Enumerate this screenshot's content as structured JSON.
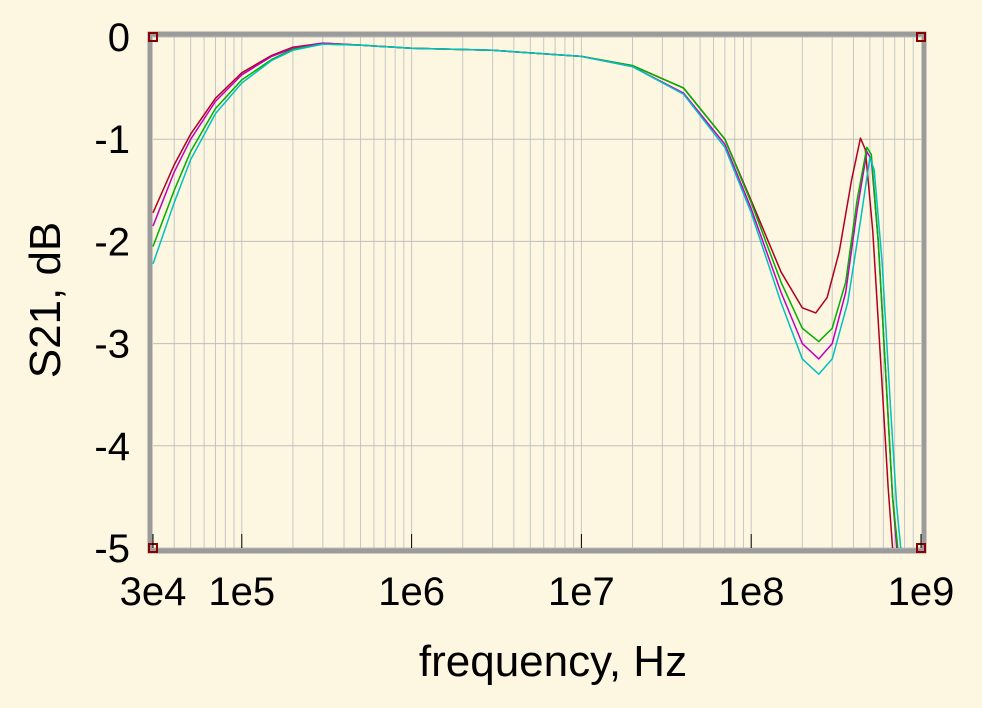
{
  "chart_data": {
    "type": "line",
    "xscale": "log",
    "xlabel": "frequency, Hz",
    "ylabel": "S21, dB",
    "xlim": [
      30000,
      1000000000
    ],
    "ylim": [
      -5,
      0
    ],
    "grid": true,
    "x_ticks": [
      {
        "value": 30000,
        "label": "3e4"
      },
      {
        "value": 100000,
        "label": "1e5"
      },
      {
        "value": 1000000,
        "label": "1e6"
      },
      {
        "value": 10000000,
        "label": "1e7"
      },
      {
        "value": 100000000,
        "label": "1e8"
      },
      {
        "value": 1000000000,
        "label": "1e9"
      }
    ],
    "y_ticks": [
      {
        "value": 0,
        "label": "0"
      },
      {
        "value": -1,
        "label": "-1"
      },
      {
        "value": -2,
        "label": "-2"
      },
      {
        "value": -3,
        "label": "-3"
      },
      {
        "value": -4,
        "label": "-4"
      },
      {
        "value": -5,
        "label": "-5"
      }
    ],
    "series": [
      {
        "color": "#b00020",
        "points": [
          [
            30000,
            -1.72
          ],
          [
            40000,
            -1.25
          ],
          [
            50000,
            -0.95
          ],
          [
            70000,
            -0.6
          ],
          [
            100000,
            -0.35
          ],
          [
            150000,
            -0.18
          ],
          [
            200000,
            -0.1
          ],
          [
            300000,
            -0.06
          ],
          [
            500000,
            -0.08
          ],
          [
            1000000,
            -0.11
          ],
          [
            3000000,
            -0.13
          ],
          [
            10000000,
            -0.19
          ],
          [
            20000000,
            -0.28
          ],
          [
            40000000,
            -0.5
          ],
          [
            70000000,
            -1.0
          ],
          [
            100000000,
            -1.6
          ],
          [
            150000000,
            -2.3
          ],
          [
            200000000,
            -2.65
          ],
          [
            240000000,
            -2.7
          ],
          [
            280000000,
            -2.55
          ],
          [
            330000000,
            -2.1
          ],
          [
            390000000,
            -1.4
          ],
          [
            440000000,
            -0.99
          ],
          [
            470000000,
            -1.1
          ],
          [
            520000000,
            -1.9
          ],
          [
            580000000,
            -3.2
          ],
          [
            640000000,
            -4.4
          ],
          [
            680000000,
            -5.0
          ]
        ]
      },
      {
        "color": "#c000c0",
        "points": [
          [
            30000,
            -1.85
          ],
          [
            40000,
            -1.32
          ],
          [
            50000,
            -1.0
          ],
          [
            70000,
            -0.63
          ],
          [
            100000,
            -0.37
          ],
          [
            150000,
            -0.19
          ],
          [
            200000,
            -0.11
          ],
          [
            300000,
            -0.06
          ],
          [
            500000,
            -0.08
          ],
          [
            1000000,
            -0.11
          ],
          [
            3000000,
            -0.13
          ],
          [
            10000000,
            -0.19
          ],
          [
            20000000,
            -0.29
          ],
          [
            40000000,
            -0.55
          ],
          [
            70000000,
            -1.05
          ],
          [
            100000000,
            -1.68
          ],
          [
            150000000,
            -2.5
          ],
          [
            200000000,
            -3.0
          ],
          [
            250000000,
            -3.15
          ],
          [
            300000000,
            -3.0
          ],
          [
            360000000,
            -2.5
          ],
          [
            420000000,
            -1.7
          ],
          [
            480000000,
            -1.12
          ],
          [
            510000000,
            -1.2
          ],
          [
            560000000,
            -2.0
          ],
          [
            620000000,
            -3.3
          ],
          [
            680000000,
            -4.5
          ],
          [
            720000000,
            -5.0
          ]
        ]
      },
      {
        "color": "#00b000",
        "points": [
          [
            30000,
            -2.05
          ],
          [
            40000,
            -1.5
          ],
          [
            50000,
            -1.12
          ],
          [
            70000,
            -0.7
          ],
          [
            100000,
            -0.42
          ],
          [
            150000,
            -0.22
          ],
          [
            200000,
            -0.12
          ],
          [
            300000,
            -0.07
          ],
          [
            500000,
            -0.08
          ],
          [
            1000000,
            -0.11
          ],
          [
            3000000,
            -0.13
          ],
          [
            10000000,
            -0.19
          ],
          [
            20000000,
            -0.28
          ],
          [
            40000000,
            -0.5
          ],
          [
            70000000,
            -1.0
          ],
          [
            100000000,
            -1.62
          ],
          [
            150000000,
            -2.4
          ],
          [
            200000000,
            -2.85
          ],
          [
            250000000,
            -2.98
          ],
          [
            300000000,
            -2.85
          ],
          [
            360000000,
            -2.4
          ],
          [
            420000000,
            -1.6
          ],
          [
            480000000,
            -1.08
          ],
          [
            510000000,
            -1.15
          ],
          [
            560000000,
            -2.0
          ],
          [
            620000000,
            -3.3
          ],
          [
            680000000,
            -4.5
          ],
          [
            730000000,
            -5.0
          ]
        ]
      },
      {
        "color": "#00c0c0",
        "points": [
          [
            30000,
            -2.22
          ],
          [
            40000,
            -1.62
          ],
          [
            50000,
            -1.2
          ],
          [
            70000,
            -0.75
          ],
          [
            100000,
            -0.45
          ],
          [
            150000,
            -0.23
          ],
          [
            200000,
            -0.13
          ],
          [
            300000,
            -0.07
          ],
          [
            500000,
            -0.08
          ],
          [
            1000000,
            -0.11
          ],
          [
            3000000,
            -0.13
          ],
          [
            10000000,
            -0.19
          ],
          [
            20000000,
            -0.29
          ],
          [
            40000000,
            -0.56
          ],
          [
            70000000,
            -1.08
          ],
          [
            100000000,
            -1.72
          ],
          [
            150000000,
            -2.6
          ],
          [
            200000000,
            -3.15
          ],
          [
            250000000,
            -3.3
          ],
          [
            300000000,
            -3.15
          ],
          [
            370000000,
            -2.6
          ],
          [
            440000000,
            -1.8
          ],
          [
            500000000,
            -1.18
          ],
          [
            530000000,
            -1.3
          ],
          [
            590000000,
            -2.2
          ],
          [
            660000000,
            -3.6
          ],
          [
            720000000,
            -4.6
          ],
          [
            760000000,
            -5.0
          ]
        ]
      }
    ]
  }
}
